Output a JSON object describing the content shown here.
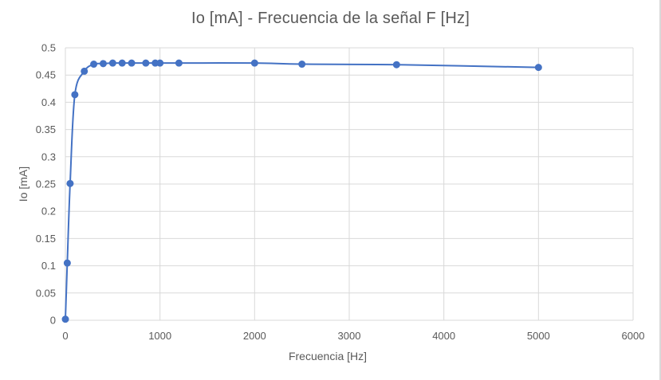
{
  "chart_data": {
    "type": "scatter",
    "title": "Io [mA] - Frecuencia de la señal F [Hz]",
    "xlabel": "Frecuencia [Hz]",
    "ylabel": "Io [mA]",
    "xlim": [
      0,
      6000
    ],
    "ylim": [
      0,
      0.5
    ],
    "x_ticks": [
      "0",
      "1000",
      "2000",
      "3000",
      "4000",
      "5000",
      "6000"
    ],
    "y_ticks": [
      "0",
      "0.05",
      "0.1",
      "0.15",
      "0.2",
      "0.25",
      "0.3",
      "0.35",
      "0.4",
      "0.45",
      "0.5"
    ],
    "grid": true,
    "smooth_line": true,
    "series_color": "#4472c4",
    "gridline_color": "#d9d9d9",
    "points": [
      {
        "x": 0,
        "y": 0.002
      },
      {
        "x": 20,
        "y": 0.105
      },
      {
        "x": 50,
        "y": 0.251
      },
      {
        "x": 100,
        "y": 0.414
      },
      {
        "x": 200,
        "y": 0.457
      },
      {
        "x": 300,
        "y": 0.47
      },
      {
        "x": 400,
        "y": 0.471
      },
      {
        "x": 500,
        "y": 0.472
      },
      {
        "x": 600,
        "y": 0.472
      },
      {
        "x": 700,
        "y": 0.472
      },
      {
        "x": 850,
        "y": 0.472
      },
      {
        "x": 950,
        "y": 0.472
      },
      {
        "x": 1000,
        "y": 0.472
      },
      {
        "x": 1200,
        "y": 0.472
      },
      {
        "x": 2000,
        "y": 0.472
      },
      {
        "x": 2500,
        "y": 0.47
      },
      {
        "x": 3500,
        "y": 0.469
      },
      {
        "x": 5000,
        "y": 0.464
      }
    ]
  }
}
